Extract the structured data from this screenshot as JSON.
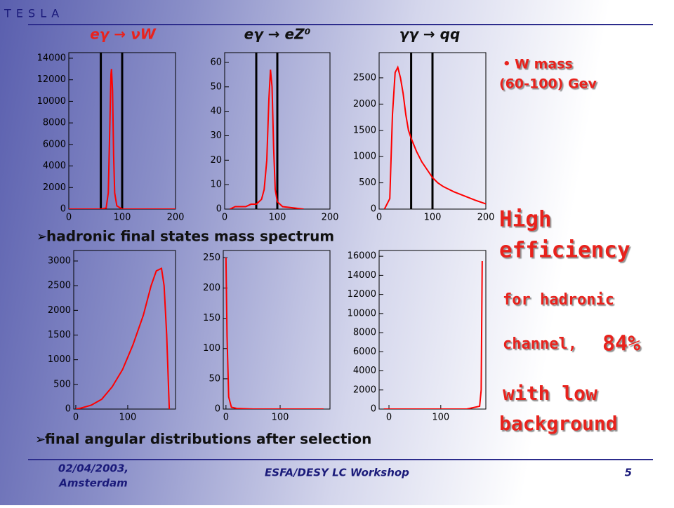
{
  "header": {
    "title": "T E S L A"
  },
  "chart_data": [
    {
      "type": "line",
      "title": "eγ → νW",
      "color": "#ff0000",
      "x": [
        0,
        60,
        70,
        74,
        77,
        79,
        80,
        82,
        84,
        86,
        90,
        100,
        200
      ],
      "values": [
        0,
        0,
        100,
        1500,
        8000,
        12500,
        13000,
        11000,
        5000,
        1500,
        300,
        0,
        0
      ],
      "xlim": [
        0,
        200
      ],
      "ylim": [
        0,
        14520
      ],
      "xticks": [
        0,
        100,
        200
      ],
      "yticks": [
        0,
        2000,
        4000,
        6000,
        8000,
        10000,
        12000,
        14000
      ],
      "vlines": [
        60,
        100
      ]
    },
    {
      "type": "line",
      "title": "eγ → eZ⁰",
      "color": "#ff0000",
      "x": [
        10,
        20,
        30,
        40,
        50,
        60,
        70,
        75,
        80,
        84,
        87,
        90,
        93,
        96,
        100,
        110,
        130,
        150
      ],
      "values": [
        0,
        1,
        1,
        1,
        2,
        2,
        4,
        8,
        20,
        45,
        57,
        50,
        25,
        8,
        3,
        1,
        0.5,
        0
      ],
      "xlim": [
        0,
        200
      ],
      "ylim": [
        0,
        64
      ],
      "xticks": [
        0,
        100,
        200
      ],
      "yticks": [
        0,
        10,
        20,
        30,
        40,
        50,
        60
      ],
      "vlines": [
        60,
        100
      ]
    },
    {
      "type": "line",
      "title": "γγ → qq",
      "color": "#ff0000",
      "x": [
        10,
        20,
        25,
        30,
        35,
        40,
        45,
        50,
        55,
        60,
        70,
        80,
        90,
        100,
        110,
        120,
        140,
        160,
        180,
        200
      ],
      "values": [
        0,
        200,
        1800,
        2600,
        2700,
        2500,
        2200,
        1800,
        1500,
        1350,
        1100,
        900,
        750,
        600,
        500,
        430,
        330,
        250,
        170,
        100
      ],
      "xlim": [
        0,
        200
      ],
      "ylim": [
        0,
        2980
      ],
      "xticks": [
        0,
        100,
        200
      ],
      "yticks": [
        0,
        500,
        1000,
        1500,
        2000,
        2500
      ],
      "vlines": [
        60,
        100
      ]
    },
    {
      "type": "line",
      "color": "#ff0000",
      "x": [
        0,
        10,
        30,
        50,
        70,
        90,
        110,
        130,
        145,
        155,
        165,
        170,
        175,
        180
      ],
      "values": [
        0,
        20,
        80,
        200,
        450,
        800,
        1300,
        1900,
        2500,
        2800,
        2850,
        2500,
        1500,
        0
      ],
      "xlim": [
        -4,
        192
      ],
      "ylim": [
        0,
        3213
      ],
      "xticks": [
        0,
        100
      ],
      "yticks": [
        0,
        500,
        1000,
        1500,
        2000,
        2500,
        3000
      ]
    },
    {
      "type": "line",
      "color": "#ff0000",
      "x": [
        0,
        2,
        5,
        10,
        20,
        50,
        180
      ],
      "values": [
        250,
        120,
        20,
        3,
        1,
        0,
        0
      ],
      "xlim": [
        -5,
        192
      ],
      "ylim": [
        0,
        262
      ],
      "xticks": [
        0,
        100
      ],
      "yticks": [
        0,
        50,
        100,
        150,
        200,
        250
      ]
    },
    {
      "type": "line",
      "color": "#ff0000",
      "x": [
        -10,
        150,
        175,
        178,
        180
      ],
      "values": [
        0,
        0,
        300,
        2000,
        15500
      ],
      "xlim": [
        -19,
        187
      ],
      "ylim": [
        0,
        16600
      ],
      "xticks": [
        0,
        100
      ],
      "yticks": [
        0,
        2000,
        4000,
        6000,
        8000,
        10000,
        12000,
        14000,
        16000
      ]
    }
  ],
  "captions": [
    "hadronic final states mass spectrum",
    "final angular distributions after selection"
  ],
  "notes": {
    "bullet": [
      "W mass",
      "(60-100) Gev"
    ],
    "highlight": [
      "High",
      "efficiency"
    ],
    "detail": [
      "for hadronic",
      "channel,",
      "84%",
      "with low",
      "background"
    ]
  },
  "footer": {
    "date": [
      "02/04/2003,",
      "Amsterdam"
    ],
    "event": "ESFA/DESY LC Workshop",
    "page": "5"
  }
}
